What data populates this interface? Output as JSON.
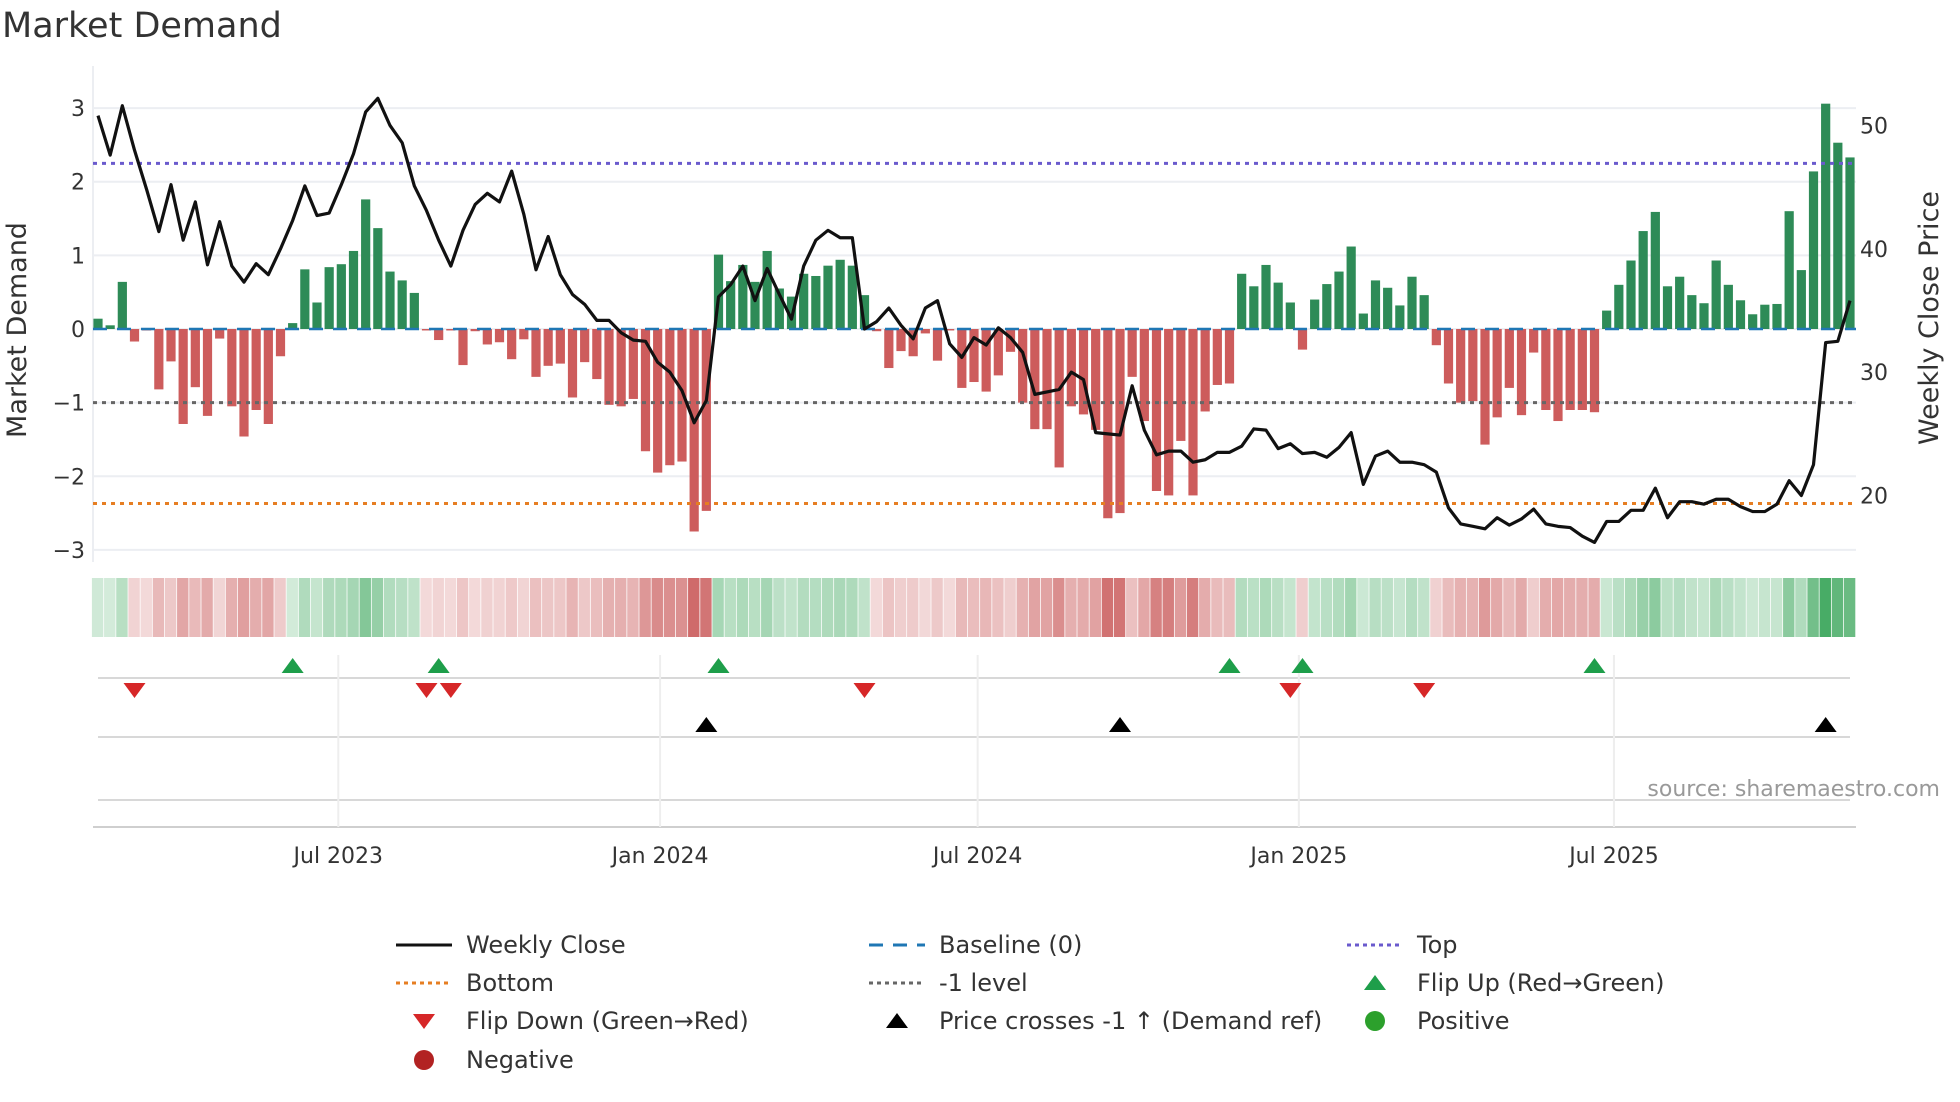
{
  "title": "Market Demand",
  "source": "source: sharemaestro.com",
  "colors": {
    "pos": "#2e8b57",
    "neg": "#cd5c5c",
    "price": "#111111",
    "baseline": "#1f77b4",
    "top": "#6a5acd",
    "bottom": "#e67e22",
    "minus1": "#666666",
    "flip_up": "#1e9e4a",
    "flip_down": "#d62728",
    "cross": "#000000",
    "positive_dot": "#2ca02c",
    "negative_dot": "#b22222"
  },
  "chart_data": {
    "type": "bar",
    "title": "Market Demand",
    "ylabel": "Market Demand",
    "y2label": "Weekly Close Price",
    "ylim": [
      -3.3,
      3.3
    ],
    "y2lim": [
      13.8,
      53.2
    ],
    "yticks": [
      "3",
      "2",
      "1",
      "0",
      "−1",
      "−2",
      "−3"
    ],
    "ytick_values": [
      3,
      2,
      1,
      0,
      -1,
      -2,
      -3
    ],
    "y2ticks": [
      "50",
      "40",
      "30",
      "20"
    ],
    "y2tick_values": [
      50,
      40,
      30,
      20
    ],
    "xticks": [
      {
        "label": "Jul 2023",
        "week": 20.75
      },
      {
        "label": "Jan 2024",
        "week": 47.2
      },
      {
        "label": "Jul 2024",
        "week": 73.3
      },
      {
        "label": "Jan 2025",
        "week": 99.7
      },
      {
        "label": "Jul 2025",
        "week": 125.6
      }
    ],
    "levels": {
      "top": 2.25,
      "bottom": -2.37,
      "minus1": -1,
      "baseline": 0
    },
    "demand": [
      0.14,
      0.05,
      0.64,
      -0.17,
      -0.02,
      -0.82,
      -0.44,
      -1.29,
      -0.79,
      -1.18,
      -0.13,
      -1.05,
      -1.46,
      -1.1,
      -1.29,
      -0.37,
      0.08,
      0.81,
      0.36,
      0.84,
      0.88,
      1.06,
      1.76,
      1.37,
      0.78,
      0.66,
      0.49,
      -0.02,
      -0.15,
      -0.02,
      -0.49,
      -0.03,
      -0.21,
      -0.18,
      -0.41,
      -0.14,
      -0.65,
      -0.5,
      -0.47,
      -0.93,
      -0.45,
      -0.68,
      -1.03,
      -1.05,
      -0.95,
      -1.66,
      -1.95,
      -1.85,
      -1.8,
      -2.75,
      -2.47,
      1.01,
      0.65,
      0.87,
      0.64,
      1.06,
      0.55,
      0.44,
      0.75,
      0.72,
      0.86,
      0.94,
      0.86,
      0.46,
      -0.03,
      -0.53,
      -0.3,
      -0.37,
      -0.06,
      -0.43,
      -0.02,
      -0.8,
      -0.72,
      -0.85,
      -0.63,
      -0.31,
      -1.0,
      -1.36,
      -1.36,
      -1.88,
      -1.05,
      -1.16,
      -1.37,
      -2.57,
      -2.5,
      -0.65,
      -1.25,
      -2.2,
      -2.26,
      -1.52,
      -2.26,
      -1.12,
      -0.76,
      -0.74,
      0.75,
      0.58,
      0.87,
      0.63,
      0.36,
      -0.28,
      0.4,
      0.61,
      0.78,
      1.12,
      0.21,
      0.66,
      0.56,
      0.32,
      0.71,
      0.46,
      -0.22,
      -0.74,
      -1.0,
      -0.98,
      -1.57,
      -1.2,
      -0.8,
      -1.17,
      -0.32,
      -1.1,
      -1.25,
      -1.1,
      -1.1,
      -1.13,
      0.25,
      0.6,
      0.93,
      1.33,
      1.59,
      0.58,
      0.71,
      0.46,
      0.35,
      0.93,
      0.6,
      0.39,
      0.2,
      0.33,
      0.34,
      1.6,
      0.8,
      2.14,
      3.06,
      2.53,
      2.33
    ],
    "weekly_close": [
      50.8,
      47.6,
      51.6,
      48.0,
      44.8,
      41.4,
      45.2,
      40.7,
      43.8,
      38.7,
      42.2,
      38.6,
      37.3,
      38.8,
      37.9,
      40.0,
      42.3,
      45.1,
      42.7,
      42.9,
      45.2,
      47.7,
      51.1,
      52.2,
      50.0,
      48.6,
      45.1,
      43.1,
      40.7,
      38.6,
      41.5,
      43.6,
      44.5,
      43.8,
      46.3,
      42.8,
      38.3,
      41.0,
      37.9,
      36.3,
      35.5,
      34.2,
      34.2,
      33.2,
      32.6,
      32.5,
      30.8,
      30.0,
      28.5,
      25.9,
      27.7,
      36.1,
      37.1,
      38.6,
      35.8,
      38.4,
      36.3,
      34.3,
      38.6,
      40.7,
      41.5,
      40.9,
      40.9,
      33.5,
      34.1,
      35.2,
      33.8,
      32.7,
      35.2,
      35.8,
      32.3,
      31.2,
      32.8,
      32.2,
      33.6,
      32.8,
      31.6,
      28.2,
      28.4,
      28.6,
      30.0,
      29.4,
      25.1,
      25.0,
      24.9,
      28.9,
      25.3,
      23.3,
      23.6,
      23.6,
      22.7,
      22.9,
      23.5,
      23.5,
      24.0,
      25.4,
      25.3,
      23.8,
      24.2,
      23.4,
      23.5,
      23.1,
      23.9,
      25.1,
      20.9,
      23.2,
      23.6,
      22.7,
      22.7,
      22.5,
      21.9,
      19.0,
      17.7,
      17.5,
      17.3,
      18.2,
      17.6,
      18.1,
      18.9,
      17.7,
      17.5,
      17.4,
      16.7,
      16.2,
      17.9,
      17.9,
      18.8,
      18.8,
      20.6,
      18.2,
      19.5,
      19.5,
      19.3,
      19.7,
      19.7,
      19.1,
      18.7,
      18.7,
      19.3,
      21.2,
      20.0,
      22.5,
      32.4,
      32.5,
      35.8
    ],
    "flip_up_weeks": [
      17,
      29,
      52,
      94,
      100,
      124
    ],
    "flip_down_weeks": [
      4,
      28,
      30,
      64,
      99,
      110
    ],
    "price_cross_weeks": [
      51,
      85,
      143
    ]
  },
  "legend": [
    {
      "label": "Weekly Close",
      "kind": "line",
      "color": "#111111",
      "dash": ""
    },
    {
      "label": "Baseline (0)",
      "kind": "line",
      "color": "#1f77b4",
      "dash": "14 10"
    },
    {
      "label": "Top",
      "kind": "line",
      "color": "#6a5acd",
      "dash": "4 4"
    },
    {
      "label": "Bottom",
      "kind": "line",
      "color": "#e67e22",
      "dash": "4 4"
    },
    {
      "label": "-1 level",
      "kind": "line",
      "color": "#666666",
      "dash": "4 4"
    },
    {
      "label": "Flip Up (Red→Green)",
      "kind": "tri-up",
      "color": "#1e9e4a"
    },
    {
      "label": "Flip Down (Green→Red)",
      "kind": "tri-down",
      "color": "#d62728"
    },
    {
      "label": "Price crosses -1 ↑ (Demand ref)",
      "kind": "tri-up",
      "color": "#000000"
    },
    {
      "label": "Positive",
      "kind": "dot",
      "color": "#2ca02c"
    },
    {
      "label": "Negative",
      "kind": "dot",
      "color": "#b22222"
    }
  ]
}
